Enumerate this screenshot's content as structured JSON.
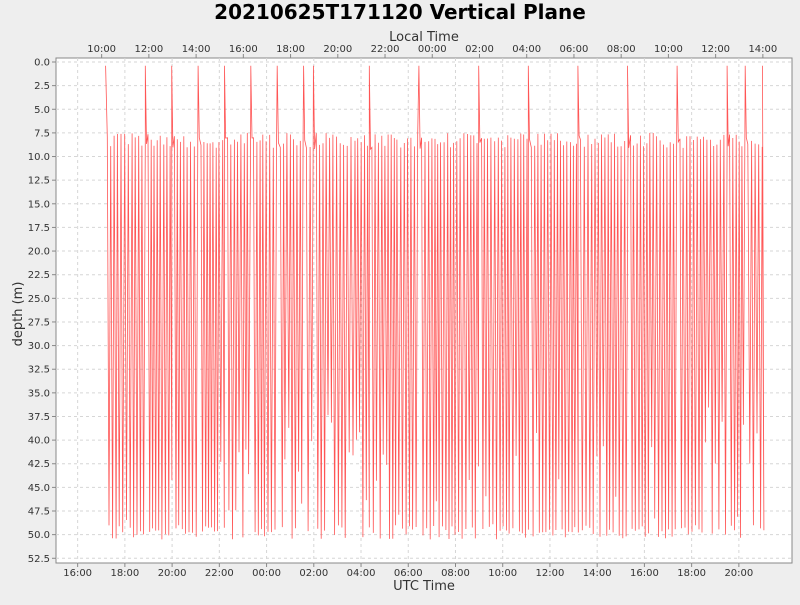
{
  "chart_data": {
    "type": "line",
    "title": "20210625T171120 Vertical Plane",
    "xlabel": "UTC Time",
    "x2label": "Local Time",
    "ylabel": "depth (m)",
    "ylim_inverted": [
      0.0,
      53.0
    ],
    "y_ticks": [
      "0.0",
      "2.5",
      "5.0",
      "7.5",
      "10.0",
      "12.5",
      "15.0",
      "17.5",
      "20.0",
      "22.5",
      "25.0",
      "27.5",
      "30.0",
      "32.5",
      "35.0",
      "37.5",
      "40.0",
      "42.5",
      "45.0",
      "47.5",
      "50.0",
      "52.5"
    ],
    "x_ticks_utc": [
      "16:00",
      "18:00",
      "20:00",
      "22:00",
      "00:00",
      "02:00",
      "04:00",
      "06:00",
      "08:00",
      "10:00",
      "12:00",
      "14:00",
      "16:00",
      "18:00",
      "20:00"
    ],
    "x_ticks_local": [
      "10:00",
      "12:00",
      "14:00",
      "16:00",
      "18:00",
      "20:00",
      "22:00",
      "00:00",
      "02:00",
      "04:00",
      "06:00",
      "08:00",
      "10:00",
      "12:00",
      "14:00"
    ],
    "x_range_hours_utc": [
      "2021-06-25 15:05",
      "2021-06-26 22:15"
    ],
    "grid": true,
    "color": "#ff5555",
    "series": [
      {
        "x_start": "2021-06-25 17:11",
        "x_end": "2021-06-26 21:00",
        "profile_min_depth": 7.5,
        "profile_max_depth": 50.5,
        "surfacings_utc": [
          "2021-06-25 17:11",
          "2021-06-25 18:52",
          "2021-06-25 19:59",
          "2021-06-25 21:06",
          "2021-06-25 22:13",
          "2021-06-25 23:20",
          "2021-06-26 00:27",
          "2021-06-26 01:34",
          "2021-06-26 01:59",
          "2021-06-26 04:21",
          "2021-06-26 06:27",
          "2021-06-26 08:59",
          "2021-06-26 11:05",
          "2021-06-26 13:11",
          "2021-06-26 15:17",
          "2021-06-26 17:23",
          "2021-06-26 19:30",
          "2021-06-26 20:16"
        ]
      }
    ]
  }
}
